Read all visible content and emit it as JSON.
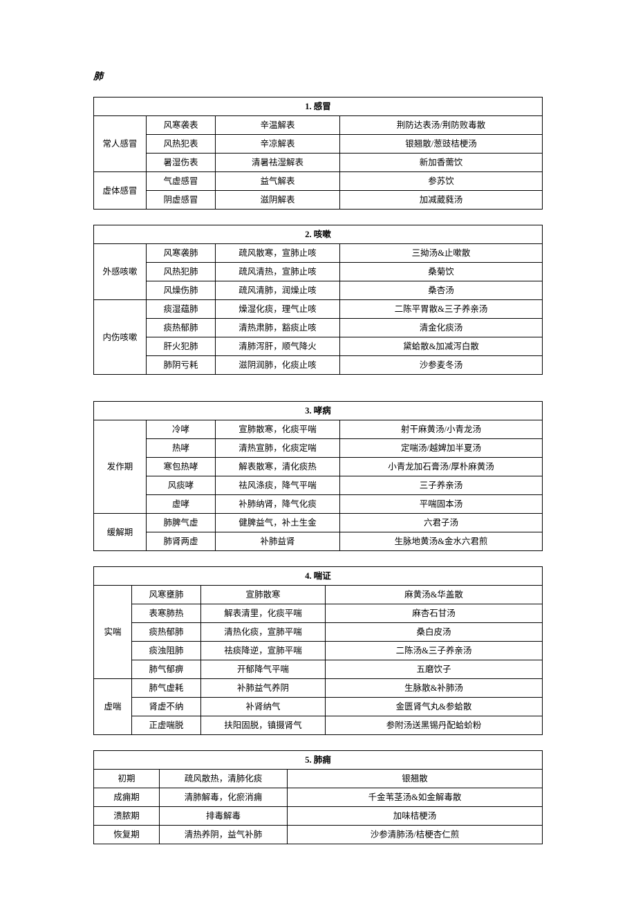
{
  "section_title": "肺",
  "tables": {
    "t1": {
      "title": "1. 感冒",
      "rows": [
        {
          "cat": "常人感冒",
          "type": "风寒袭表",
          "method": "辛温解表",
          "rx": "荆防达表汤/荆防败毒散"
        },
        {
          "type": "风热犯表",
          "method": "辛凉解表",
          "rx": "银翘散/葱豉桔梗汤"
        },
        {
          "type": "暑湿伤表",
          "method": "清暑祛湿解表",
          "rx": "新加香薷饮"
        },
        {
          "cat": "虚体感冒",
          "type": "气虚感冒",
          "method": "益气解表",
          "rx": "参苏饮"
        },
        {
          "type": "阴虚感冒",
          "method": "滋阴解表",
          "rx": "加减葳蕤汤"
        }
      ]
    },
    "t2": {
      "title": "2. 咳嗽",
      "rows": [
        {
          "cat": "外感咳嗽",
          "type": "风寒袭肺",
          "method": "疏风散寒，宣肺止咳",
          "rx": "三拗汤&止嗽散"
        },
        {
          "type": "风热犯肺",
          "method": "疏风清热，宣肺止咳",
          "rx": "桑菊饮"
        },
        {
          "type": "风燥伤肺",
          "method": "疏风清肺，润燥止咳",
          "rx": "桑杏汤"
        },
        {
          "cat": "内伤咳嗽",
          "type": "痰湿蕴肺",
          "method": "燥湿化痰，理气止咳",
          "rx": "二陈平胃散&三子养亲汤"
        },
        {
          "type": "痰热郁肺",
          "method": "清热肃肺，豁痰止咳",
          "rx": "清金化痰汤"
        },
        {
          "type": "肝火犯肺",
          "method": "清肺泻肝，顺气降火",
          "rx": "黛蛤散&加减泻白散"
        },
        {
          "type": "肺阴亏耗",
          "method": "滋阴润肺，化痰止咳",
          "rx": "沙参麦冬汤"
        }
      ]
    },
    "t3": {
      "title": "3. 哮病",
      "rows": [
        {
          "cat": "发作期",
          "type": "冷哮",
          "method": "宣肺散寒，化痰平喘",
          "rx": "射干麻黄汤/小青龙汤"
        },
        {
          "type": "热哮",
          "method": "清热宣肺，化痰定喘",
          "rx": "定喘汤/越婢加半夏汤"
        },
        {
          "type": "寒包热哮",
          "method": "解表散寒，清化痰热",
          "rx": "小青龙加石膏汤/厚朴麻黄汤"
        },
        {
          "type": "风痰哮",
          "method": "祛风涤痰，降气平喘",
          "rx": "三子养亲汤"
        },
        {
          "type": "虚哮",
          "method": "补肺纳肾，降气化痰",
          "rx": "平喘固本汤"
        },
        {
          "cat": "缓解期",
          "type": "肺脾气虚",
          "method": "健脾益气，补土生金",
          "rx": "六君子汤"
        },
        {
          "type": "肺肾两虚",
          "method": "补肺益肾",
          "rx": "生脉地黄汤&金水六君煎"
        }
      ]
    },
    "t4": {
      "title": "4. 喘证",
      "rows": [
        {
          "cat": "实喘",
          "type": "风寒壅肺",
          "method": "宣肺散寒",
          "rx": "麻黄汤&华盖散"
        },
        {
          "type": "表寒肺热",
          "method": "解表清里，化痰平喘",
          "rx": "麻杏石甘汤"
        },
        {
          "type": "痰热郁肺",
          "method": "清热化痰，宣肺平喘",
          "rx": "桑白皮汤"
        },
        {
          "type": "痰浊阻肺",
          "method": "祛痰降逆，宣肺平喘",
          "rx": "二陈汤&三子养亲汤"
        },
        {
          "type": "肺气郁痹",
          "method": "开郁降气平喘",
          "rx": "五磨饮子"
        },
        {
          "cat": "虚喘",
          "type": "肺气虚耗",
          "method": "补肺益气养阴",
          "rx": "生脉散&补肺汤"
        },
        {
          "type": "肾虚不纳",
          "method": "补肾纳气",
          "rx": "金匮肾气丸&参蛤散"
        },
        {
          "type": "正虚喘脱",
          "method": "扶阳固脱，镇摄肾气",
          "rx": "参附汤送黑锡丹配蛤蚧粉"
        }
      ]
    },
    "t5": {
      "title": "5. 肺痈",
      "rows": [
        {
          "phase": "初期",
          "method": "疏风散热，清肺化痰",
          "rx": "银翘散"
        },
        {
          "phase": "成痈期",
          "method": "清肺解毒，化瘀消痈",
          "rx": "千金苇茎汤&如金解毒散"
        },
        {
          "phase": "溃脓期",
          "method": "排毒解毒",
          "rx": "加味桔梗汤"
        },
        {
          "phase": "恢复期",
          "method": "清热养阴，益气补肺",
          "rx": "沙参清肺汤/桔梗杏仁煎"
        }
      ]
    }
  }
}
